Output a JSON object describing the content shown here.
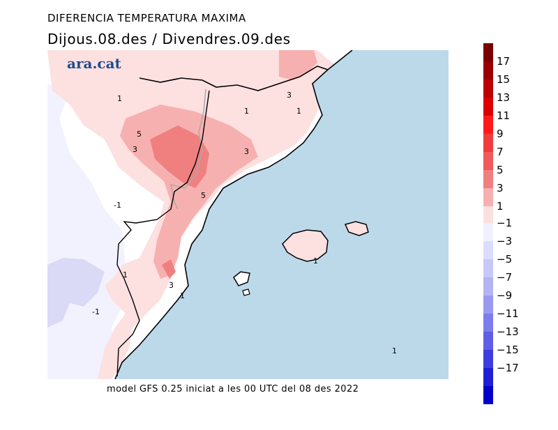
{
  "header": {
    "title": "DIFERENCIA TEMPERATURA MAXIMA",
    "subtitle": "Dijous.08.des / Divendres.09.des"
  },
  "logo": {
    "text": "ara.cat"
  },
  "footer": {
    "text": "model GFS 0.25 iniciat a les 00 UTC del 08 des 2022"
  },
  "map": {
    "sea_color": "#bcd9ea",
    "contour_labels": [
      "1",
      "3",
      "5",
      "1",
      "3",
      "1",
      "3",
      "-1",
      "1",
      "3",
      "1",
      "-1",
      "1",
      "1",
      "5"
    ]
  },
  "colorbar": {
    "labels": [
      "17",
      "15",
      "13",
      "11",
      "9",
      "7",
      "5",
      "3",
      "1",
      "-1",
      "-3",
      "-5",
      "-7",
      "-9",
      "-11",
      "-13",
      "-15",
      "-17"
    ],
    "warm_colors": [
      "#7a0000",
      "#9b0000",
      "#bb0000",
      "#dd0000",
      "#ff1a1a",
      "#f03c3c",
      "#f05a5a",
      "#f08080",
      "#f6b0b0",
      "#fce0e0"
    ],
    "cool_colors": [
      "#f0f0ff",
      "#dcdcff",
      "#c8c8f8",
      "#b4b4f4",
      "#9a9af0",
      "#7c7cec",
      "#5e5ee6",
      "#3e3ee0",
      "#1e1ed6",
      "#0000c8"
    ]
  }
}
